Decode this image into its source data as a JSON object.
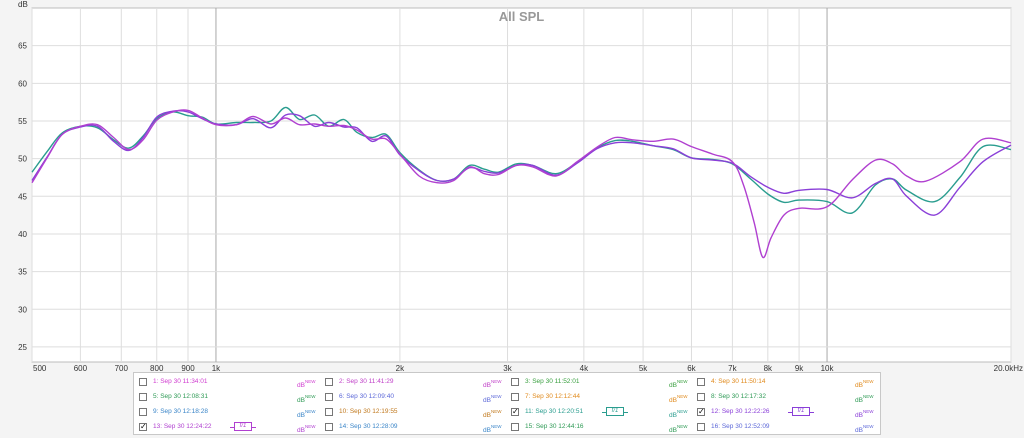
{
  "chart_data": {
    "type": "line",
    "title": "All SPL",
    "ylabel": "dB",
    "xlabel": "",
    "x_scale": "log",
    "xlim": [
      500,
      20000
    ],
    "ylim": [
      23,
      70
    ],
    "grid": true,
    "x_tick_labels": [
      {
        "value": 500,
        "label": "500"
      },
      {
        "value": 600,
        "label": "600"
      },
      {
        "value": 700,
        "label": "700"
      },
      {
        "value": 800,
        "label": "800"
      },
      {
        "value": 900,
        "label": "900"
      },
      {
        "value": 1000,
        "label": "1k"
      },
      {
        "value": 2000,
        "label": "2k"
      },
      {
        "value": 3000,
        "label": "3k"
      },
      {
        "value": 4000,
        "label": "4k"
      },
      {
        "value": 5000,
        "label": "5k"
      },
      {
        "value": 6000,
        "label": "6k"
      },
      {
        "value": 7000,
        "label": "7k"
      },
      {
        "value": 8000,
        "label": "8k"
      },
      {
        "value": 9000,
        "label": "9k"
      },
      {
        "value": 10000,
        "label": "10k"
      },
      {
        "value": 20000,
        "label": "20.0kHz"
      }
    ],
    "y_ticks": [
      25,
      30,
      35,
      40,
      45,
      50,
      55,
      60,
      65
    ],
    "series": [
      {
        "name": "11: Sep 30 12:20:51",
        "color": "#2a9d8f",
        "points": [
          [
            500,
            48.2
          ],
          [
            530,
            51
          ],
          [
            560,
            53.4
          ],
          [
            600,
            54.3
          ],
          [
            640,
            54.1
          ],
          [
            680,
            52.5
          ],
          [
            720,
            51.4
          ],
          [
            760,
            53
          ],
          [
            800,
            55.3
          ],
          [
            850,
            56.2
          ],
          [
            900,
            55.7
          ],
          [
            950,
            55.5
          ],
          [
            1000,
            54.6
          ],
          [
            1080,
            54.8
          ],
          [
            1150,
            54.8
          ],
          [
            1230,
            55
          ],
          [
            1300,
            56.8
          ],
          [
            1370,
            55.2
          ],
          [
            1450,
            55.8
          ],
          [
            1530,
            54.3
          ],
          [
            1620,
            55.2
          ],
          [
            1700,
            53.5
          ],
          [
            1800,
            52.8
          ],
          [
            1900,
            53.2
          ],
          [
            2000,
            50.8
          ],
          [
            2150,
            48.5
          ],
          [
            2300,
            47.1
          ],
          [
            2450,
            47.3
          ],
          [
            2600,
            49.1
          ],
          [
            2750,
            48.6
          ],
          [
            2900,
            48.2
          ],
          [
            3100,
            49.3
          ],
          [
            3300,
            49.1
          ],
          [
            3600,
            48
          ],
          [
            3900,
            49.5
          ],
          [
            4200,
            51.4
          ],
          [
            4500,
            52.4
          ],
          [
            4800,
            52.3
          ],
          [
            5200,
            51.7
          ],
          [
            5600,
            51.2
          ],
          [
            6000,
            50.1
          ],
          [
            6500,
            49.9
          ],
          [
            7000,
            49.3
          ],
          [
            7500,
            47.3
          ],
          [
            8000,
            45.3
          ],
          [
            8500,
            44.2
          ],
          [
            9000,
            44.5
          ],
          [
            10000,
            44.3
          ],
          [
            11000,
            42.8
          ],
          [
            12000,
            46.5
          ],
          [
            12800,
            47.3
          ],
          [
            13500,
            45.8
          ],
          [
            15000,
            44.3
          ],
          [
            16500,
            47.5
          ],
          [
            18000,
            51.6
          ],
          [
            20000,
            51.2
          ]
        ]
      },
      {
        "name": "12: Sep 30 12:22:26",
        "color": "#8a3fd8",
        "points": [
          [
            500,
            47.1
          ],
          [
            530,
            50.3
          ],
          [
            560,
            53.2
          ],
          [
            600,
            54.2
          ],
          [
            640,
            54.3
          ],
          [
            680,
            52.3
          ],
          [
            720,
            51.1
          ],
          [
            760,
            52.8
          ],
          [
            800,
            55.5
          ],
          [
            850,
            56.3
          ],
          [
            900,
            56.2
          ],
          [
            950,
            55.3
          ],
          [
            1000,
            54.6
          ],
          [
            1080,
            54.5
          ],
          [
            1150,
            55.3
          ],
          [
            1230,
            54.1
          ],
          [
            1300,
            55.8
          ],
          [
            1370,
            55.7
          ],
          [
            1450,
            54.3
          ],
          [
            1530,
            54.8
          ],
          [
            1620,
            54.2
          ],
          [
            1700,
            54.1
          ],
          [
            1800,
            52.3
          ],
          [
            1900,
            53
          ],
          [
            2000,
            50.5
          ],
          [
            2150,
            48.4
          ],
          [
            2300,
            47.1
          ],
          [
            2450,
            47.3
          ],
          [
            2600,
            48.8
          ],
          [
            2750,
            48.3
          ],
          [
            2900,
            48.1
          ],
          [
            3100,
            49.1
          ],
          [
            3300,
            49.1
          ],
          [
            3600,
            47.8
          ],
          [
            3900,
            49.4
          ],
          [
            4200,
            51.3
          ],
          [
            4500,
            52.1
          ],
          [
            4800,
            52.1
          ],
          [
            5200,
            51.7
          ],
          [
            5600,
            51.3
          ],
          [
            6000,
            50.1
          ],
          [
            6500,
            49.8
          ],
          [
            7000,
            49.4
          ],
          [
            7500,
            47.6
          ],
          [
            8000,
            46.2
          ],
          [
            8500,
            45.4
          ],
          [
            9000,
            45.8
          ],
          [
            10000,
            45.9
          ],
          [
            11000,
            44.8
          ],
          [
            12000,
            46.7
          ],
          [
            12800,
            47.3
          ],
          [
            13500,
            45
          ],
          [
            15000,
            42.5
          ],
          [
            16500,
            46.2
          ],
          [
            18000,
            49.6
          ],
          [
            20000,
            51.8
          ]
        ]
      },
      {
        "name": "13: Sep 30 12:24:22",
        "color": "#b040d0",
        "points": [
          [
            500,
            46.8
          ],
          [
            530,
            50.2
          ],
          [
            560,
            53.2
          ],
          [
            600,
            54.3
          ],
          [
            640,
            54.5
          ],
          [
            680,
            52.8
          ],
          [
            720,
            51.2
          ],
          [
            760,
            52.5
          ],
          [
            800,
            55.1
          ],
          [
            850,
            56.2
          ],
          [
            900,
            56.4
          ],
          [
            950,
            55.4
          ],
          [
            1000,
            54.5
          ],
          [
            1080,
            54.5
          ],
          [
            1150,
            55.6
          ],
          [
            1230,
            54.6
          ],
          [
            1300,
            55.4
          ],
          [
            1370,
            54.5
          ],
          [
            1450,
            54.6
          ],
          [
            1530,
            54.3
          ],
          [
            1620,
            54.4
          ],
          [
            1700,
            53.8
          ],
          [
            1800,
            52.6
          ],
          [
            1900,
            52.6
          ],
          [
            2000,
            50.6
          ],
          [
            2150,
            47.7
          ],
          [
            2300,
            46.8
          ],
          [
            2450,
            47.1
          ],
          [
            2600,
            48.9
          ],
          [
            2750,
            48
          ],
          [
            2900,
            47.9
          ],
          [
            3100,
            49.1
          ],
          [
            3300,
            48.9
          ],
          [
            3600,
            47.7
          ],
          [
            3900,
            49.6
          ],
          [
            4200,
            51.5
          ],
          [
            4500,
            52.8
          ],
          [
            4800,
            52.5
          ],
          [
            5200,
            52.3
          ],
          [
            5600,
            52.6
          ],
          [
            6000,
            51.6
          ],
          [
            6500,
            50.6
          ],
          [
            7000,
            49.6
          ],
          [
            7300,
            46.5
          ],
          [
            7600,
            41.5
          ],
          [
            7850,
            36.9
          ],
          [
            8100,
            39.5
          ],
          [
            8500,
            42.5
          ],
          [
            9000,
            43.4
          ],
          [
            10000,
            43.6
          ],
          [
            11000,
            47.2
          ],
          [
            12000,
            49.8
          ],
          [
            12800,
            49.3
          ],
          [
            13500,
            47.7
          ],
          [
            14500,
            47
          ],
          [
            16500,
            49.6
          ],
          [
            18000,
            52.6
          ],
          [
            20000,
            52.1
          ]
        ]
      }
    ]
  },
  "legend": {
    "db_label": "dB",
    "db_sup": "NEW",
    "checked_mark": "✓",
    "entries": [
      {
        "label": "1: Sep 30 11:34:01",
        "color": "#d03cd0",
        "checked": false,
        "trace": ""
      },
      {
        "label": "2: Sep 30 11:41:29",
        "color": "#c040c8",
        "checked": false,
        "trace": ""
      },
      {
        "label": "3: Sep 30 11:52:01",
        "color": "#3aa040",
        "checked": false,
        "trace": ""
      },
      {
        "label": "4: Sep 30 11:50:14",
        "color": "#e08a1c",
        "checked": false,
        "trace": ""
      },
      {
        "label": "5: Sep 30 12:08:31",
        "color": "#2e9a55",
        "checked": false,
        "trace": ""
      },
      {
        "label": "6: Sep 30 12:09:40",
        "color": "#5b67d8",
        "checked": false,
        "trace": ""
      },
      {
        "label": "7: Sep 30 12:12:44",
        "color": "#e08a1c",
        "checked": false,
        "trace": ""
      },
      {
        "label": "8: Sep 30 12:17:32",
        "color": "#2e9a55",
        "checked": false,
        "trace": ""
      },
      {
        "label": "9: Sep 30 12:18:28",
        "color": "#3a85c8",
        "checked": false,
        "trace": ""
      },
      {
        "label": "10: Sep 30 12:19:55",
        "color": "#c0781c",
        "checked": false,
        "trace": ""
      },
      {
        "label": "11: Sep 30 12:20:51",
        "color": "#2a9d8f",
        "checked": true,
        "trace": "f/1"
      },
      {
        "label": "12: Sep 30 12:22:26",
        "color": "#8a3fd8",
        "checked": true,
        "trace": "f/1"
      },
      {
        "label": "13: Sep 30 12:24:22",
        "color": "#b040d0",
        "checked": true,
        "trace": "f/1"
      },
      {
        "label": "14: Sep 30 12:28:09",
        "color": "#3a85c8",
        "checked": false,
        "trace": ""
      },
      {
        "label": "15: Sep 30 12:44:16",
        "color": "#2e9a55",
        "checked": false,
        "trace": ""
      },
      {
        "label": "16: Sep 30 12:52:09",
        "color": "#5b67d8",
        "checked": false,
        "trace": ""
      }
    ]
  }
}
